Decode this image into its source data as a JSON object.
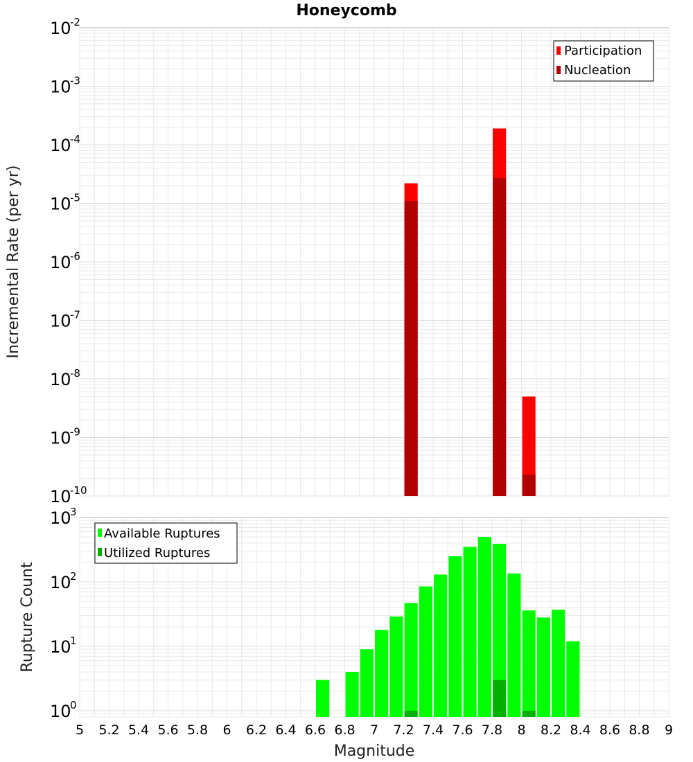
{
  "title": "Honeycomb",
  "colors": {
    "participation": "#ff0000",
    "nucleation": "#b00000",
    "available": "#00ff00",
    "utilized": "#00b000",
    "grid": "#e8e8e8",
    "frame": "#b0b0b0"
  },
  "chart_data": [
    {
      "type": "bar",
      "title": "Honeycomb",
      "xlabel": "Magnitude",
      "ylabel": "Incremental Rate (per yr)",
      "yscale": "log",
      "xlim": [
        5,
        9
      ],
      "ylim": [
        1e-10,
        0.01
      ],
      "ytick_exponents": [
        -2,
        -3,
        -4,
        -5,
        -6,
        -7,
        -8,
        -9,
        -10
      ],
      "grid": true,
      "legend_position": "top-right",
      "series": [
        {
          "name": "Participation",
          "points": [
            {
              "x": 7.25,
              "y": 2.2e-05
            },
            {
              "x": 7.85,
              "y": 0.00019
            },
            {
              "x": 8.05,
              "y": 5e-09
            }
          ]
        },
        {
          "name": "Nucleation",
          "points": [
            {
              "x": 7.25,
              "y": 1.1e-05
            },
            {
              "x": 7.85,
              "y": 2.7e-05
            },
            {
              "x": 8.05,
              "y": 2.3e-10
            }
          ]
        }
      ]
    },
    {
      "type": "bar",
      "xlabel": "Magnitude",
      "ylabel": "Rupture Count",
      "yscale": "log",
      "xlim": [
        5,
        9
      ],
      "ylim": [
        0.8,
        1000
      ],
      "ytick_exponents": [
        3,
        2,
        1,
        0
      ],
      "xticks": [
        "5",
        "5.2",
        "5.4",
        "5.6",
        "5.8",
        "6",
        "6.2",
        "6.4",
        "6.6",
        "6.8",
        "7",
        "7.2",
        "7.4",
        "7.6",
        "7.8",
        "8",
        "8.2",
        "8.4",
        "8.6",
        "8.8",
        "9"
      ],
      "grid": true,
      "legend_position": "top-left",
      "series": [
        {
          "name": "Available Ruptures",
          "points": [
            {
              "x": 6.65,
              "y": 3
            },
            {
              "x": 6.85,
              "y": 4
            },
            {
              "x": 6.95,
              "y": 9
            },
            {
              "x": 7.05,
              "y": 18
            },
            {
              "x": 7.15,
              "y": 29
            },
            {
              "x": 7.25,
              "y": 47
            },
            {
              "x": 7.35,
              "y": 85
            },
            {
              "x": 7.45,
              "y": 130
            },
            {
              "x": 7.55,
              "y": 250
            },
            {
              "x": 7.65,
              "y": 350
            },
            {
              "x": 7.75,
              "y": 500
            },
            {
              "x": 7.85,
              "y": 390
            },
            {
              "x": 7.95,
              "y": 135
            },
            {
              "x": 8.05,
              "y": 36
            },
            {
              "x": 8.15,
              "y": 28
            },
            {
              "x": 8.25,
              "y": 37
            },
            {
              "x": 8.35,
              "y": 12
            }
          ]
        },
        {
          "name": "Utilized Ruptures",
          "points": [
            {
              "x": 7.25,
              "y": 1
            },
            {
              "x": 7.85,
              "y": 3
            },
            {
              "x": 8.05,
              "y": 1
            }
          ]
        }
      ]
    }
  ]
}
